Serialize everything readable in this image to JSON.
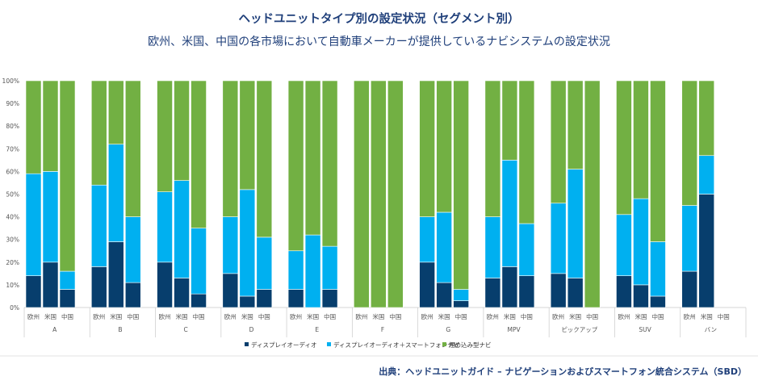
{
  "title": "ヘッドユニットタイプ別の設定状況（セグメント別）",
  "subtitle": "欧州、米国、中国の各市場において自動車メーカーが提供しているナビシステムの設定状況",
  "source": "出典：ヘッドユニットガイド – ナビゲーションおよびスマートフォン統合システム（SBD）",
  "colors": {
    "display_audio": "#073e6d",
    "display_audio_smartphone": "#00b0f0",
    "embedded_nav": "#72b043"
  },
  "chart_data": {
    "type": "bar",
    "stacked": true,
    "ylim": [
      0,
      100
    ],
    "y_ticks": [
      "0%",
      "10%",
      "20%",
      "30%",
      "40%",
      "50%",
      "60%",
      "70%",
      "80%",
      "90%",
      "100%"
    ],
    "legend_position": "bottom",
    "series": [
      {
        "name": "ディスプレイオーディオ",
        "color": "#073e6d"
      },
      {
        "name": "ディスプレイオーディオ＋スマートフォンナビ",
        "color": "#00b0f0"
      },
      {
        "name": "埋め込み型ナビ",
        "color": "#72b043"
      }
    ],
    "groups": [
      {
        "name": "A",
        "bars": [
          {
            "label": "欧州",
            "values": [
              14,
              45,
              41
            ]
          },
          {
            "label": "米国",
            "values": [
              20,
              40,
              40
            ]
          },
          {
            "label": "中国",
            "values": [
              8,
              8,
              84
            ]
          }
        ]
      },
      {
        "name": "B",
        "bars": [
          {
            "label": "欧州",
            "values": [
              18,
              36,
              46
            ]
          },
          {
            "label": "米国",
            "values": [
              29,
              43,
              28
            ]
          },
          {
            "label": "中国",
            "values": [
              11,
              29,
              60
            ]
          }
        ]
      },
      {
        "name": "C",
        "bars": [
          {
            "label": "欧州",
            "values": [
              20,
              31,
              49
            ]
          },
          {
            "label": "米国",
            "values": [
              13,
              43,
              44
            ]
          },
          {
            "label": "中国",
            "values": [
              6,
              29,
              65
            ]
          }
        ]
      },
      {
        "name": "D",
        "bars": [
          {
            "label": "欧州",
            "values": [
              15,
              25,
              60
            ]
          },
          {
            "label": "米国",
            "values": [
              5,
              47,
              48
            ]
          },
          {
            "label": "中国",
            "values": [
              8,
              23,
              69
            ]
          }
        ]
      },
      {
        "name": "E",
        "bars": [
          {
            "label": "欧州",
            "values": [
              8,
              17,
              75
            ]
          },
          {
            "label": "米国",
            "values": [
              0,
              32,
              68
            ]
          },
          {
            "label": "中国",
            "values": [
              8,
              19,
              73
            ]
          }
        ]
      },
      {
        "name": "F",
        "bars": [
          {
            "label": "欧州",
            "values": [
              0,
              0,
              100
            ]
          },
          {
            "label": "米国",
            "values": [
              0,
              0,
              100
            ]
          },
          {
            "label": "中国",
            "values": [
              0,
              0,
              100
            ]
          }
        ]
      },
      {
        "name": "G",
        "bars": [
          {
            "label": "欧州",
            "values": [
              20,
              20,
              60
            ]
          },
          {
            "label": "米国",
            "values": [
              11,
              31,
              58
            ]
          },
          {
            "label": "中国",
            "values": [
              3,
              5,
              92
            ]
          }
        ]
      },
      {
        "name": "MPV",
        "bars": [
          {
            "label": "欧州",
            "values": [
              13,
              27,
              60
            ]
          },
          {
            "label": "米国",
            "values": [
              18,
              47,
              35
            ]
          },
          {
            "label": "中国",
            "values": [
              14,
              23,
              63
            ]
          }
        ]
      },
      {
        "name": "ピックアップ",
        "bars": [
          {
            "label": "欧州",
            "values": [
              15,
              31,
              54
            ]
          },
          {
            "label": "米国",
            "values": [
              13,
              48,
              39
            ]
          },
          {
            "label": "中国",
            "values": [
              0,
              0,
              100
            ]
          }
        ]
      },
      {
        "name": "SUV",
        "bars": [
          {
            "label": "欧州",
            "values": [
              14,
              27,
              59
            ]
          },
          {
            "label": "米国",
            "values": [
              10,
              38,
              52
            ]
          },
          {
            "label": "中国",
            "values": [
              5,
              24,
              71
            ]
          }
        ]
      },
      {
        "name": "バン",
        "bars": [
          {
            "label": "欧州",
            "values": [
              16,
              29,
              55
            ]
          },
          {
            "label": "米国",
            "values": [
              50,
              17,
              33
            ]
          },
          {
            "label": "中国",
            "values": [
              0,
              0,
              0
            ]
          }
        ]
      }
    ]
  }
}
